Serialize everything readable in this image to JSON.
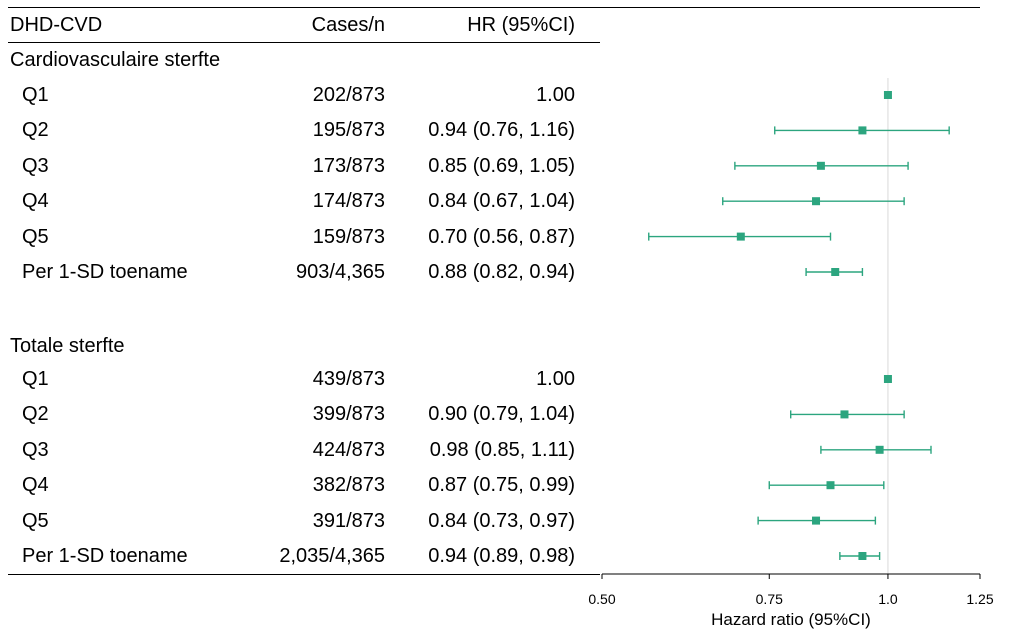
{
  "headers": {
    "label": "DHD-CVD",
    "cases": "Cases/n",
    "hr": "HR (95%CI)"
  },
  "chart_data": {
    "type": "forest",
    "reference_value": 1.0,
    "xlabel": "Hazard ratio (95%CI)",
    "xscale": "log",
    "xlim": [
      0.5,
      1.25
    ],
    "xticks": [
      0.5,
      0.75,
      1.0,
      1.25
    ],
    "xtick_labels": [
      "0.50",
      "0.75",
      "1.0",
      "1.25"
    ],
    "marker_color": "#2ca57f",
    "groups": [
      {
        "title": "Cardiovasculaire sterfte",
        "rows": [
          {
            "label": "Q1",
            "cases": "202/873",
            "hr_text": "1.00",
            "hr": 1.0,
            "lo": null,
            "hi": null
          },
          {
            "label": "Q2",
            "cases": "195/873",
            "hr_text": "0.94 (0.76, 1.16)",
            "hr": 0.94,
            "lo": 0.76,
            "hi": 1.16
          },
          {
            "label": "Q3",
            "cases": "173/873",
            "hr_text": "0.85 (0.69, 1.05)",
            "hr": 0.85,
            "lo": 0.69,
            "hi": 1.05
          },
          {
            "label": "Q4",
            "cases": "174/873",
            "hr_text": "0.84 (0.67, 1.04)",
            "hr": 0.84,
            "lo": 0.67,
            "hi": 1.04
          },
          {
            "label": "Q5",
            "cases": "159/873",
            "hr_text": "0.70 (0.56, 0.87)",
            "hr": 0.7,
            "lo": 0.56,
            "hi": 0.87
          },
          {
            "label": "Per 1-SD toename",
            "cases": "903/4,365",
            "hr_text": "0.88 (0.82, 0.94)",
            "hr": 0.88,
            "lo": 0.82,
            "hi": 0.94
          }
        ]
      },
      {
        "title": "Totale sterfte",
        "rows": [
          {
            "label": "Q1",
            "cases": "439/873",
            "hr_text": "1.00",
            "hr": 1.0,
            "lo": null,
            "hi": null
          },
          {
            "label": "Q2",
            "cases": "399/873",
            "hr_text": "0.90 (0.79, 1.04)",
            "hr": 0.9,
            "lo": 0.79,
            "hi": 1.04
          },
          {
            "label": "Q3",
            "cases": "424/873",
            "hr_text": "0.98 (0.85, 1.11)",
            "hr": 0.98,
            "lo": 0.85,
            "hi": 1.11
          },
          {
            "label": "Q4",
            "cases": "382/873",
            "hr_text": "0.87 (0.75, 0.99)",
            "hr": 0.87,
            "lo": 0.75,
            "hi": 0.99
          },
          {
            "label": "Q5",
            "cases": "391/873",
            "hr_text": "0.84 (0.73, 0.97)",
            "hr": 0.84,
            "lo": 0.73,
            "hi": 0.97
          },
          {
            "label": "Per 1-SD toename",
            "cases": "2,035/4,365",
            "hr_text": "0.94 (0.89, 0.98)",
            "hr": 0.94,
            "lo": 0.89,
            "hi": 0.98
          }
        ]
      }
    ]
  }
}
